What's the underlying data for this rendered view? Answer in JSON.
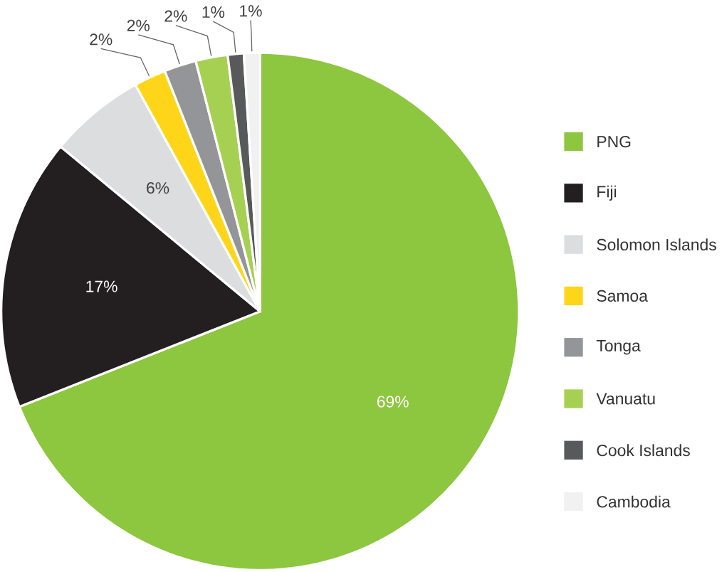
{
  "chart_data": {
    "type": "pie",
    "categories": [
      "PNG",
      "Fiji",
      "Solomon Islands",
      "Samoa",
      "Tonga",
      "Vanuatu",
      "Cook Islands",
      "Cambodia"
    ],
    "values": [
      69,
      17,
      6,
      2,
      2,
      2,
      1,
      1
    ],
    "value_labels": [
      "69%",
      "17%",
      "6%",
      "2%",
      "2%",
      "2%",
      "1%",
      "1%"
    ],
    "colors": [
      "#8dc63f",
      "#231f20",
      "#dcdddf",
      "#ffd51a",
      "#939598",
      "#a6d052",
      "#58595b",
      "#f1f1f2"
    ],
    "legend": "right"
  }
}
